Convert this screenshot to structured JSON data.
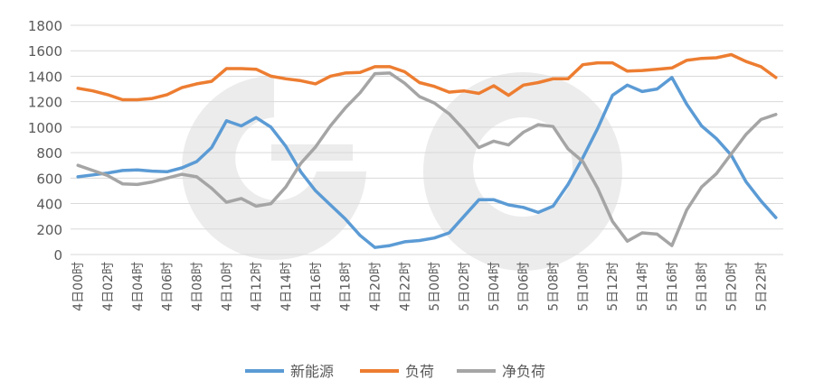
{
  "chart_data": {
    "type": "line",
    "title": "",
    "xlabel": "",
    "ylabel": "",
    "ylim": [
      0,
      1800
    ],
    "yticks": [
      0,
      200,
      400,
      600,
      800,
      1000,
      1200,
      1400,
      1600,
      1800
    ],
    "grid": true,
    "legend_position": "bottom",
    "categories": [
      "4日00时",
      "4日01时",
      "4日02时",
      "4日03时",
      "4日04时",
      "4日05时",
      "4日06时",
      "4日07时",
      "4日08时",
      "4日09时",
      "4日10时",
      "4日11时",
      "4日12时",
      "4日13时",
      "4日14时",
      "4日15时",
      "4日16时",
      "4日17时",
      "4日18时",
      "4日19时",
      "4日20时",
      "4日21时",
      "4日22时",
      "4日23时",
      "5日00时",
      "5日01时",
      "5日02时",
      "5日03时",
      "5日04时",
      "5日05时",
      "5日06时",
      "5日07时",
      "5日08时",
      "5日09时",
      "5日10时",
      "5日11时",
      "5日12时",
      "5日13时",
      "5日14时",
      "5日15时",
      "5日16时",
      "5日17时",
      "5日18时",
      "5日19时",
      "5日20时",
      "5日21时",
      "5日22时",
      "5日23时"
    ],
    "tick_labels": [
      "4日00时",
      "4日02时",
      "4日04时",
      "4日06时",
      "4日08时",
      "4日10时",
      "4日12时",
      "4日14时",
      "4日16时",
      "4日18时",
      "4日20时",
      "4日22时",
      "5日00时",
      "5日02时",
      "5日04时",
      "5日06时",
      "5日08时",
      "5日10时",
      "5日12时",
      "5日14时",
      "5日16时",
      "5日18时",
      "5日20时",
      "5日22时"
    ],
    "series": [
      {
        "name": "新能源",
        "color": "#5b9bd5",
        "values": [
          610,
          625,
          640,
          660,
          665,
          655,
          650,
          680,
          730,
          840,
          1050,
          1010,
          1075,
          1000,
          850,
          650,
          500,
          390,
          280,
          150,
          55,
          70,
          100,
          110,
          130,
          170,
          300,
          430,
          430,
          390,
          370,
          330,
          380,
          550,
          760,
          990,
          1250,
          1330,
          1280,
          1300,
          1390,
          1180,
          1010,
          910,
          780,
          570,
          420,
          290
        ]
      },
      {
        "name": "负荷",
        "color": "#ed7d31",
        "values": [
          1305,
          1285,
          1255,
          1215,
          1215,
          1225,
          1255,
          1310,
          1340,
          1360,
          1460,
          1460,
          1455,
          1400,
          1380,
          1365,
          1340,
          1400,
          1425,
          1430,
          1475,
          1475,
          1435,
          1350,
          1320,
          1275,
          1285,
          1265,
          1325,
          1250,
          1330,
          1350,
          1380,
          1380,
          1490,
          1505,
          1505,
          1440,
          1445,
          1455,
          1465,
          1525,
          1540,
          1545,
          1570,
          1515,
          1475,
          1390
        ]
      },
      {
        "name": "净负荷",
        "color": "#a5a5a5",
        "values": [
          700,
          660,
          620,
          555,
          550,
          570,
          600,
          630,
          610,
          520,
          410,
          440,
          380,
          400,
          530,
          715,
          845,
          1010,
          1150,
          1270,
          1420,
          1425,
          1345,
          1240,
          1190,
          1105,
          980,
          840,
          890,
          860,
          960,
          1020,
          1005,
          830,
          730,
          520,
          260,
          105,
          170,
          160,
          70,
          350,
          530,
          635,
          790,
          945,
          1060,
          1100
        ]
      }
    ]
  }
}
